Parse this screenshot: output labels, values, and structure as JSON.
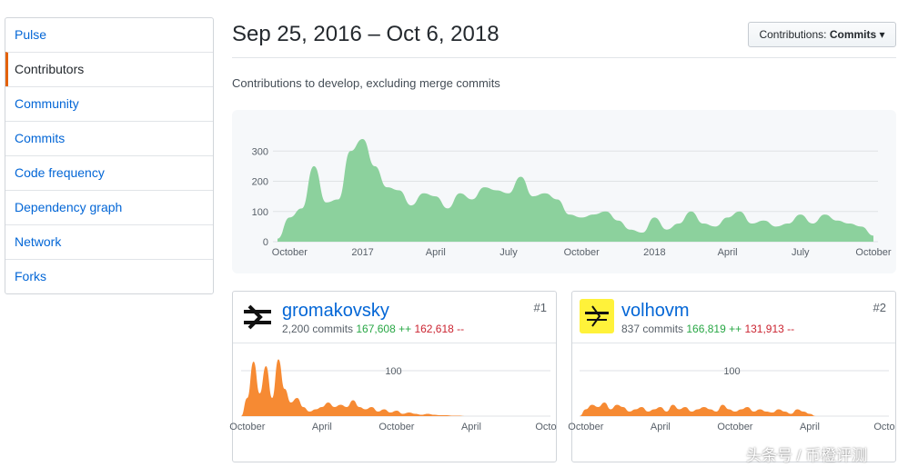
{
  "sidebar": {
    "items": [
      "Pulse",
      "Contributors",
      "Community",
      "Commits",
      "Code frequency",
      "Dependency graph",
      "Network",
      "Forks"
    ],
    "selected": 1
  },
  "header": {
    "title": "Sep 25, 2016 – Oct 6, 2018",
    "button_label": "Contributions:",
    "button_value": "Commits",
    "subtitle": "Contributions to develop, excluding merge commits"
  },
  "contributors": [
    {
      "name": "gromakovsky",
      "rank": "#1",
      "commits": "2,200 commits",
      "additions": "167,608 ++",
      "deletions": "162,618 --"
    },
    {
      "name": "volhovm",
      "rank": "#2",
      "commits": "837 commits",
      "additions": "166,819 ++",
      "deletions": "131,913 --"
    }
  ],
  "watermark": "头条号 / 币橙评测",
  "chart_data": [
    {
      "type": "area",
      "color": "#8cd19d",
      "ylim": [
        0,
        400
      ],
      "yticks": [
        0,
        100,
        200,
        300
      ],
      "grid": true,
      "categories": [
        null,
        "October",
        null,
        null,
        null,
        null,
        null,
        "2017",
        null,
        null,
        null,
        null,
        null,
        "April",
        null,
        null,
        null,
        null,
        null,
        "July",
        null,
        null,
        null,
        null,
        null,
        "October",
        null,
        null,
        null,
        null,
        null,
        "2018",
        null,
        null,
        null,
        null,
        null,
        "April",
        null,
        null,
        null,
        null,
        null,
        "July",
        null,
        null,
        null,
        null,
        null,
        "October"
      ],
      "values": [
        10,
        80,
        110,
        250,
        130,
        140,
        300,
        340,
        250,
        180,
        170,
        120,
        160,
        150,
        110,
        160,
        140,
        180,
        170,
        160,
        215,
        150,
        160,
        140,
        90,
        80,
        90,
        100,
        70,
        40,
        30,
        80,
        40,
        60,
        100,
        60,
        50,
        80,
        100,
        60,
        70,
        50,
        60,
        90,
        60,
        90,
        70,
        60,
        50,
        20
      ]
    },
    {
      "type": "area",
      "color": "#f68a33",
      "ylim": [
        0,
        150
      ],
      "yticks": [
        100
      ],
      "grid": true,
      "categories": [
        null,
        "October",
        null,
        null,
        null,
        null,
        null,
        null,
        null,
        null,
        null,
        null,
        null,
        "April",
        null,
        null,
        null,
        null,
        null,
        null,
        null,
        null,
        null,
        null,
        null,
        "October",
        null,
        null,
        null,
        null,
        null,
        null,
        null,
        null,
        null,
        null,
        null,
        "April",
        null,
        null,
        null,
        null,
        null,
        null,
        null,
        null,
        null,
        null,
        null,
        "Octo"
      ],
      "values": [
        0,
        40,
        120,
        50,
        110,
        40,
        125,
        60,
        30,
        40,
        20,
        10,
        15,
        20,
        30,
        20,
        25,
        20,
        35,
        20,
        15,
        20,
        10,
        15,
        8,
        12,
        5,
        8,
        5,
        3,
        5,
        3,
        2,
        2,
        1,
        1,
        0,
        0,
        0,
        0,
        0,
        0,
        0,
        0,
        0,
        0,
        0,
        0,
        0,
        0
      ]
    },
    {
      "type": "area",
      "color": "#f68a33",
      "ylim": [
        0,
        150
      ],
      "yticks": [
        100
      ],
      "grid": true,
      "categories": [
        null,
        "October",
        null,
        null,
        null,
        null,
        null,
        null,
        null,
        null,
        null,
        null,
        null,
        "April",
        null,
        null,
        null,
        null,
        null,
        null,
        null,
        null,
        null,
        null,
        null,
        "October",
        null,
        null,
        null,
        null,
        null,
        null,
        null,
        null,
        null,
        null,
        null,
        "April",
        null,
        null,
        null,
        null,
        null,
        null,
        null,
        null,
        null,
        null,
        null,
        "Octo"
      ],
      "values": [
        0,
        15,
        25,
        20,
        30,
        15,
        25,
        20,
        10,
        15,
        20,
        10,
        15,
        20,
        10,
        25,
        15,
        20,
        10,
        15,
        20,
        15,
        10,
        25,
        15,
        10,
        15,
        20,
        10,
        15,
        10,
        8,
        15,
        10,
        5,
        15,
        10,
        5,
        0,
        0,
        0,
        0,
        0,
        0,
        0,
        0,
        0,
        0,
        0,
        0
      ]
    }
  ]
}
